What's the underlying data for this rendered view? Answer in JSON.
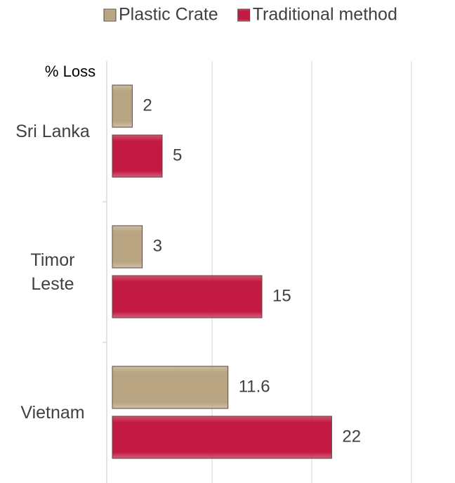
{
  "chart_data": {
    "type": "barh",
    "categories": [
      "Sri Lanka",
      "Timor Leste",
      "Vietnam"
    ],
    "series": [
      {
        "name": "Plastic Crate",
        "color": "#b9a582",
        "values": [
          2,
          3,
          11.6
        ]
      },
      {
        "name": "Traditional method",
        "color": "#c21a42",
        "values": [
          5,
          15,
          22
        ]
      }
    ],
    "axis_label": "% Loss",
    "xlim": [
      0,
      30
    ],
    "xticks": [
      0,
      10,
      20,
      30
    ],
    "grid": true,
    "legend": "top"
  }
}
